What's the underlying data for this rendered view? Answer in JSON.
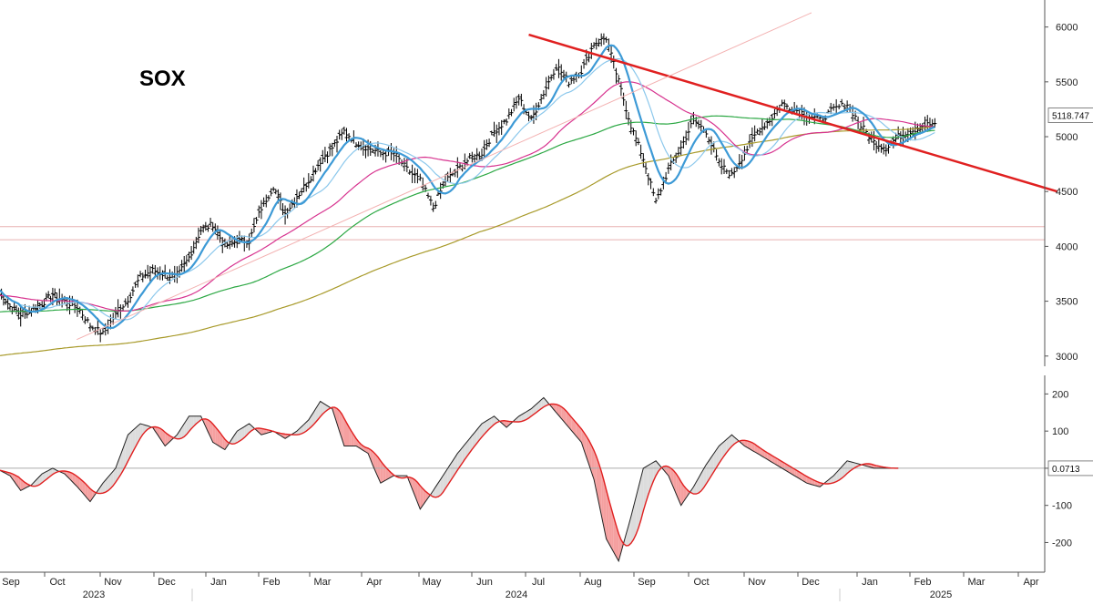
{
  "chart_data": [
    {
      "type": "ohlc",
      "title": "SOX",
      "y_ticks": [
        3000,
        3500,
        4000,
        4500,
        5000,
        5500,
        6000
      ],
      "ylim": [
        2940,
        6130
      ],
      "last_value_label": "5118.747",
      "grid": false,
      "x_months": [
        "Sep",
        "Oct",
        "Nov",
        "Dec",
        "Jan",
        "Feb",
        "Mar",
        "Apr",
        "May",
        "Jun",
        "Jul",
        "Aug",
        "Sep",
        "Oct",
        "Nov",
        "Dec",
        "Jan",
        "Feb",
        "Mar",
        "Apr"
      ],
      "years": [
        "2023",
        "2024",
        "2025"
      ],
      "close_weekly": [
        3600,
        3450,
        3380,
        3420,
        3480,
        3560,
        3500,
        3450,
        3280,
        3200,
        3380,
        3520,
        3720,
        3780,
        3740,
        3720,
        3900,
        4150,
        4200,
        4000,
        4050,
        4050,
        4350,
        4550,
        4300,
        4450,
        4600,
        4780,
        4900,
        5050,
        4950,
        4900,
        4850,
        4850,
        4700,
        4600,
        4350,
        4600,
        4700,
        4800,
        4850,
        5050,
        5150,
        5350,
        5150,
        5400,
        5650,
        5500,
        5600,
        5850,
        5900,
        5500,
        5100,
        4800,
        4400,
        4700,
        4900,
        5150,
        5050,
        4750,
        4650,
        4850,
        5050,
        5150,
        5300,
        5250,
        5200,
        5150,
        5250,
        5300,
        5100,
        4950,
        4900,
        5000,
        5050,
        5100,
        5120
      ],
      "reference_levels": [
        4060,
        4180
      ],
      "series": [
        {
          "name": "",
          "color": "#000000",
          "role": "price"
        },
        {
          "name": "",
          "color": "#3d9ad6",
          "role": "moving-average-short"
        },
        {
          "name": "",
          "color": "#8cc8ec",
          "role": "moving-average-medium"
        },
        {
          "name": "",
          "color": "#d7338f",
          "role": "moving-average-50"
        },
        {
          "name": "",
          "color": "#2ca844",
          "role": "moving-average-100"
        },
        {
          "name": "",
          "color": "#a89a2a",
          "role": "moving-average-200"
        }
      ],
      "trendlines": [
        {
          "color": "#e02020",
          "from": [
            "2024-07-10",
            5930
          ],
          "to": [
            "2025-04-30",
            4500
          ]
        },
        {
          "color": "#f3b1b1",
          "from": [
            "2023-10-26",
            3150
          ],
          "to": [
            "2024-12-15",
            6130
          ]
        }
      ]
    },
    {
      "type": "area",
      "y_ticks": [
        200,
        100,
        0,
        -100,
        -200
      ],
      "ylim": [
        -270,
        250
      ],
      "last_value_label": "0.0713",
      "oscillator_weekly": [
        -5,
        -20,
        -60,
        -45,
        -15,
        0,
        -15,
        -50,
        -90,
        -40,
        0,
        90,
        120,
        110,
        60,
        90,
        140,
        140,
        70,
        50,
        100,
        120,
        90,
        100,
        80,
        100,
        130,
        180,
        160,
        60,
        60,
        40,
        -40,
        -20,
        -20,
        -110,
        -60,
        -10,
        40,
        80,
        120,
        140,
        110,
        140,
        160,
        190,
        150,
        110,
        70,
        -30,
        -190,
        -250,
        -130,
        0,
        20,
        -20,
        -100,
        -50,
        10,
        60,
        90,
        60,
        40,
        20,
        0,
        -20,
        -40,
        -50,
        -20,
        20,
        10,
        0,
        0,
        0
      ],
      "series": [
        {
          "name": "",
          "color": "#888888"
        },
        {
          "name": "",
          "color": "#e02020"
        }
      ]
    }
  ],
  "colors": {
    "up_fill": "#dcdcdc",
    "down_fill": "#f5a0a0",
    "axis": "#555555"
  }
}
